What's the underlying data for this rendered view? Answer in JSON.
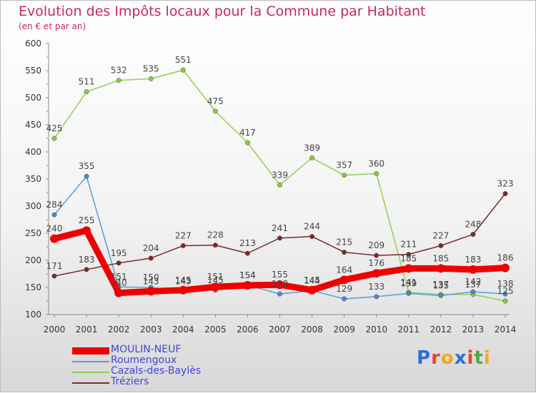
{
  "chart_title": "Evolution des Impôts locaux pour la Commune par Habitant",
  "chart_subtitle": "(en € et par an)",
  "logo": {
    "text": "Proxiti",
    "letters": [
      {
        "char": "P",
        "color": "#2a6fd6"
      },
      {
        "char": "r",
        "color": "#e8452c"
      },
      {
        "char": "o",
        "color": "#f2a81d"
      },
      {
        "char": "x",
        "color": "#2a6fd6"
      },
      {
        "char": "i",
        "color": "#e8452c"
      },
      {
        "char": "t",
        "color": "#4fa83d"
      },
      {
        "char": "i",
        "color": "#f2a81d"
      }
    ]
  },
  "chart_data": {
    "type": "line",
    "title": "Evolution des Impôts locaux pour la Commune par Habitant",
    "subtitle": "(en € et par an)",
    "x": [
      2000,
      2001,
      2002,
      2003,
      2004,
      2005,
      2006,
      2007,
      2008,
      2009,
      2010,
      2011,
      2012,
      2013,
      2014
    ],
    "ylim": [
      100,
      600
    ],
    "yticks": [
      100,
      150,
      200,
      250,
      300,
      350,
      400,
      450,
      500,
      550,
      600
    ],
    "grid": false,
    "legend_position": "bottom-left",
    "series": [
      {
        "name": "MOULIN-NEUF",
        "color": "#ee0000",
        "point_color": "#ee0000",
        "width": 9,
        "values": [
          240,
          255,
          140,
          143,
          145,
          151,
          154,
          155,
          145,
          164,
          176,
          185,
          185,
          183,
          186
        ]
      },
      {
        "name": "Roumengoux",
        "color": "#5b9bd5",
        "point_color": "#4a8ad4",
        "width": 1.5,
        "values": [
          284,
          355,
          151,
          150,
          143,
          145,
          154,
          138,
          144,
          129,
          133,
          139,
          135,
          142,
          138
        ]
      },
      {
        "name": "Cazals-des-Baylès",
        "color": "#90d050",
        "point_color": "#8ccc3c",
        "width": 1.5,
        "values": [
          425,
          511,
          532,
          535,
          551,
          475,
          417,
          339,
          389,
          357,
          360,
          141,
          137,
          137,
          125
        ]
      },
      {
        "name": "Tréziers",
        "color": "#7a2a2a",
        "point_color": "#7a2a2a",
        "width": 1.5,
        "values": [
          171,
          183,
          195,
          204,
          227,
          228,
          213,
          241,
          244,
          215,
          209,
          211,
          227,
          248,
          323
        ]
      }
    ]
  }
}
